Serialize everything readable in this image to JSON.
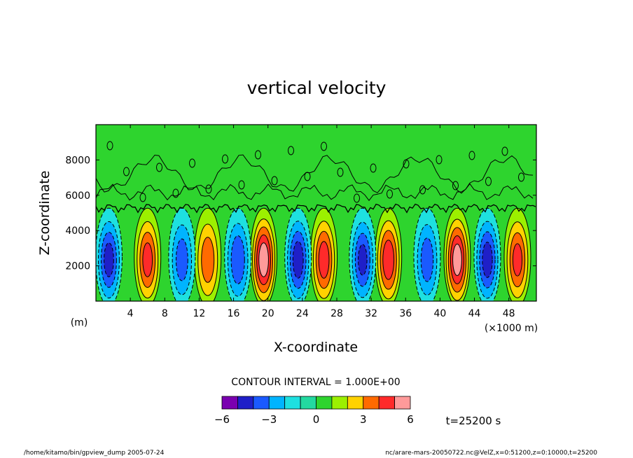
{
  "chart_data": {
    "type": "heatmap",
    "title": "vertical velocity",
    "xlabel": "X-coordinate",
    "ylabel": "Z-coordinate",
    "x_unit_label": "(×1000 m)",
    "y_unit_label": "(m)",
    "xlim": [
      0,
      51.2
    ],
    "ylim": [
      0,
      10000
    ],
    "x_ticks": [
      4,
      8,
      12,
      16,
      20,
      24,
      28,
      32,
      36,
      40,
      44,
      48
    ],
    "x_tick_labels": [
      "4",
      "8",
      "12",
      "16",
      "20",
      "24",
      "28",
      "32",
      "36",
      "40",
      "44",
      "48"
    ],
    "y_ticks": [
      2000,
      4000,
      6000,
      8000
    ],
    "y_tick_labels": [
      "2000",
      "4000",
      "6000",
      "8000"
    ],
    "contour_interval_text": "CONTOUR INTERVAL = 1.000E+00",
    "colorbar": {
      "levels": [
        -6,
        -5,
        -4,
        -3,
        -2,
        -1,
        0,
        1,
        2,
        3,
        4,
        5,
        6
      ],
      "tick_labels": [
        "−6",
        "−3",
        "0",
        "3",
        "6"
      ],
      "tick_values": [
        -6,
        -3,
        0,
        3,
        6
      ],
      "colors": [
        "#7a00b0",
        "#1f1fc8",
        "#1a5aff",
        "#00b4ff",
        "#1ee0e0",
        "#23d9a0",
        "#2ed42e",
        "#9cf000",
        "#ffd200",
        "#ff6a00",
        "#ff2a2a",
        "#ff9a9a"
      ]
    },
    "cells": {
      "updraft_centers_x": [
        6.0,
        13.0,
        19.5,
        26.5,
        34.0,
        42.0,
        49.0
      ],
      "updraft_peaks": [
        4.2,
        3.4,
        5.6,
        4.4,
        4.6,
        5.4,
        4.1
      ],
      "downdraft_centers_x": [
        1.5,
        10.0,
        16.5,
        23.5,
        31.0,
        38.5,
        45.5
      ],
      "downdraft_peaks": [
        -4.2,
        -3.2,
        -3.6,
        -4.4,
        -4.0,
        -3.3,
        -4.3
      ],
      "cell_center_z": 2500,
      "cell_top_z": 4600,
      "noise_layer_z": 5300
    },
    "time_label": "t=25200 s"
  },
  "footer": {
    "left": "/home/kitamo/bin/gpview_dump  2005-07-24",
    "right": "nc/arare-mars-20050722.nc@VelZ,x=0:51200,z=0:10000,t=25200"
  },
  "colors": {
    "background_field": "#2ed42e",
    "contour_line": "#000000"
  }
}
